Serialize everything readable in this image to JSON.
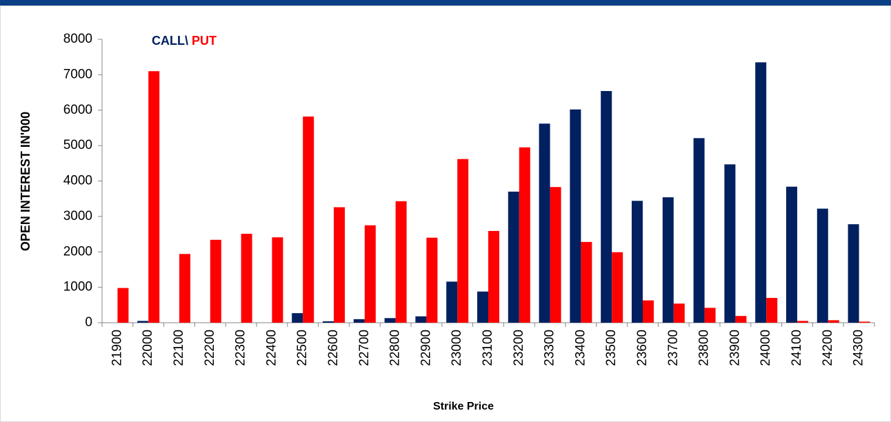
{
  "chart_data": {
    "type": "bar",
    "x_label": "Strike Price",
    "y_label": "OPEN INTEREST IN'000",
    "categories": [
      "21900",
      "22000",
      "22100",
      "22200",
      "22300",
      "22400",
      "22500",
      "22600",
      "22700",
      "22800",
      "22900",
      "23000",
      "23100",
      "23200",
      "23300",
      "23400",
      "23500",
      "23600",
      "23700",
      "23800",
      "23900",
      "24000",
      "24100",
      "24200",
      "24300"
    ],
    "series": [
      {
        "name": "CALL\\",
        "color": "#002060",
        "values": [
          0,
          50,
          0,
          0,
          0,
          0,
          270,
          40,
          100,
          130,
          180,
          1160,
          880,
          3700,
          5620,
          6020,
          6540,
          3440,
          3540,
          5210,
          4470,
          7350,
          3840,
          3220,
          2780
        ]
      },
      {
        "name": "PUT",
        "color": "#ff0000",
        "values": [
          980,
          7100,
          1940,
          2340,
          2510,
          2410,
          5820,
          3260,
          2750,
          3430,
          2400,
          4620,
          2590,
          4950,
          3830,
          2280,
          1990,
          630,
          540,
          420,
          190,
          700,
          50,
          70,
          30
        ]
      }
    ],
    "ylim": [
      0,
      8000
    ],
    "yticks": [
      0,
      1000,
      2000,
      3000,
      4000,
      5000,
      6000,
      7000,
      8000
    ],
    "grid": false,
    "legend": "top-left"
  }
}
